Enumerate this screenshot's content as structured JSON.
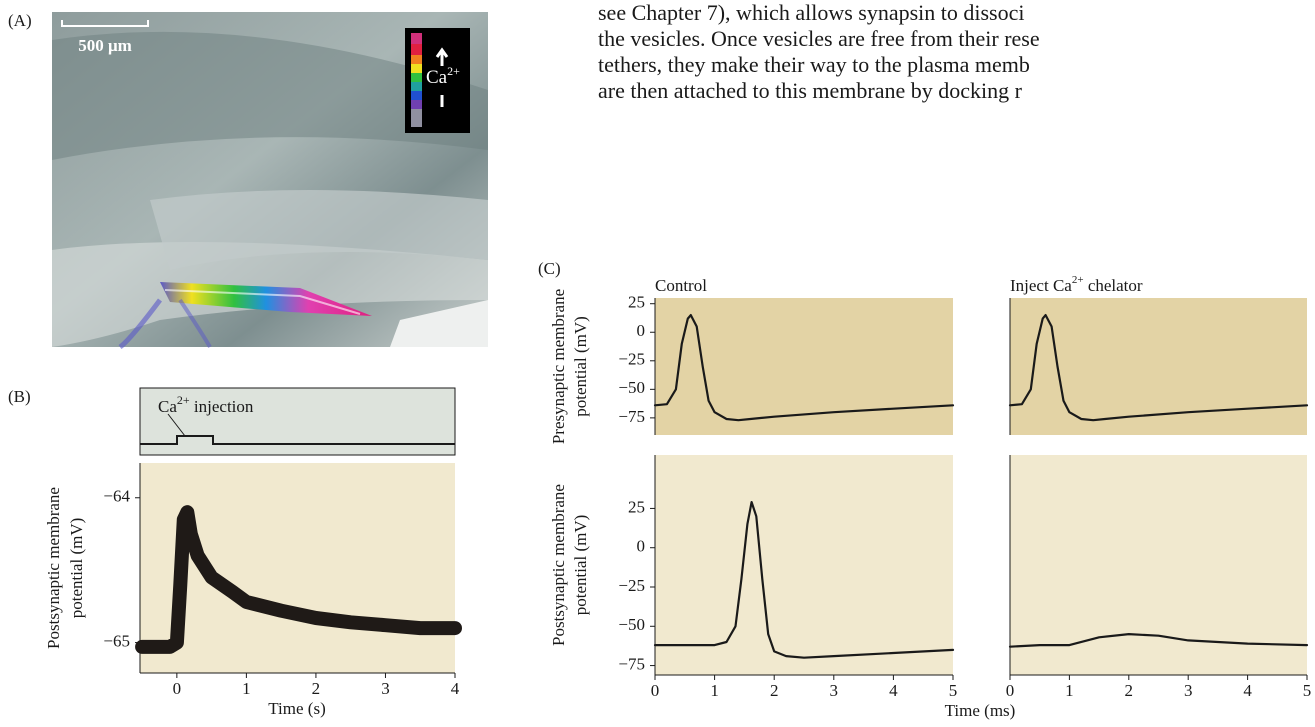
{
  "body_text": {
    "lines": [
      "see Chapter 7), which allows synapsin to dissoci",
      "the vesicles. Once vesicles are free from their rese",
      "tethers, they make their way to the plasma memb",
      "are then attached to this membrane by docking r"
    ]
  },
  "panel_labels": [
    "(A)",
    "(B)",
    "(C)"
  ],
  "panel_a": {
    "scale_label": "500 μm",
    "legend_parts": [
      "Ca",
      "2+"
    ]
  },
  "panel_b_inset": {
    "label_parts": [
      "Ca",
      "2+",
      " injection"
    ]
  },
  "chart_data": [
    {
      "type": "line",
      "background": "#f1e9cf",
      "color": "#1f1a17",
      "ylabel": [
        "Postsynaptic membrane",
        "potential (mV)"
      ],
      "xlabel": "Time (s)",
      "x": [
        -0.5,
        -0.1,
        0,
        0.05,
        0.1,
        0.15,
        0.2,
        0.3,
        0.5,
        0.8,
        1,
        1.5,
        2,
        2.5,
        3,
        3.5,
        4
      ],
      "values": [
        -65.03,
        -65.03,
        -65.0,
        -64.6,
        -64.15,
        -64.1,
        -64.25,
        -64.4,
        -64.55,
        -64.65,
        -64.72,
        -64.78,
        -64.83,
        -64.86,
        -64.88,
        -64.9,
        -64.9
      ],
      "xlim": [
        -0.53,
        4
      ],
      "xticks": [
        0,
        1,
        2,
        3,
        4
      ],
      "ylim": [
        -65.21,
        -63.76
      ],
      "yticks": [
        {
          "value": -64,
          "label": "−64"
        },
        {
          "value": -65,
          "label": "−65"
        }
      ]
    },
    {
      "type": "line",
      "background": "#e3d3a5",
      "color": "#1a1a1a",
      "title": "Control",
      "ylabel": [
        "Presynaptic membrane",
        "potential (mV)"
      ],
      "x": [
        0,
        0.2,
        0.35,
        0.45,
        0.55,
        0.6,
        0.7,
        0.8,
        0.9,
        1.0,
        1.2,
        1.4,
        1.6,
        2,
        3,
        4,
        5
      ],
      "values": [
        -64,
        -63,
        -50,
        -10,
        12,
        15,
        5,
        -30,
        -60,
        -70,
        -76,
        -77,
        -76,
        -74,
        -70,
        -67,
        -64
      ],
      "xlim": [
        0,
        5
      ],
      "ylim": [
        -90,
        30
      ],
      "yticks": [
        25,
        0,
        {
          "value": -25,
          "label": "−25"
        },
        {
          "value": -50,
          "label": "−50"
        },
        {
          "value": -75,
          "label": "−75"
        }
      ]
    },
    {
      "type": "line",
      "background": "#e3d3a5",
      "color": "#1a1a1a",
      "title": [
        "Inject Ca",
        "2+",
        " chelator"
      ],
      "x": [
        0,
        0.2,
        0.35,
        0.45,
        0.55,
        0.6,
        0.7,
        0.8,
        0.9,
        1.0,
        1.2,
        1.4,
        1.6,
        2,
        3,
        4,
        5
      ],
      "values": [
        -64,
        -63,
        -50,
        -10,
        12,
        15,
        5,
        -30,
        -60,
        -70,
        -76,
        -77,
        -76,
        -74,
        -70,
        -67,
        -64
      ],
      "xlim": [
        0,
        5
      ],
      "ylim": [
        -90,
        30
      ]
    },
    {
      "type": "line",
      "background": "#f1e9cf",
      "color": "#1a1a1a",
      "ylabel": [
        "Postsynaptic membrane",
        "potential (mV)"
      ],
      "xlabel": "Time (ms)",
      "x": [
        0,
        1,
        1.2,
        1.35,
        1.45,
        1.55,
        1.62,
        1.7,
        1.8,
        1.9,
        2.0,
        2.2,
        2.5,
        3,
        4,
        5
      ],
      "values": [
        -62,
        -62,
        -60,
        -50,
        -20,
        15,
        29,
        20,
        -20,
        -55,
        -66,
        -69,
        -70,
        -69,
        -67,
        -65
      ],
      "xlim": [
        0,
        5
      ],
      "xticks": [
        0,
        1,
        2,
        3,
        4,
        5
      ],
      "ylim": [
        -81,
        59
      ],
      "yticks": [
        25,
        0,
        {
          "value": -25,
          "label": "−25"
        },
        {
          "value": -50,
          "label": "−50"
        },
        {
          "value": -75,
          "label": "−75"
        }
      ]
    },
    {
      "type": "line",
      "background": "#f1e9cf",
      "color": "#1a1a1a",
      "x": [
        0,
        0.5,
        1,
        1.5,
        2,
        2.5,
        3,
        4,
        5
      ],
      "values": [
        -63,
        -62,
        -62,
        -57,
        -55,
        -56,
        -59,
        -61,
        -62
      ],
      "xlim": [
        0,
        5
      ],
      "xticks": [
        0,
        1,
        2,
        3,
        4,
        5
      ],
      "ylim": [
        -81,
        59
      ]
    }
  ]
}
